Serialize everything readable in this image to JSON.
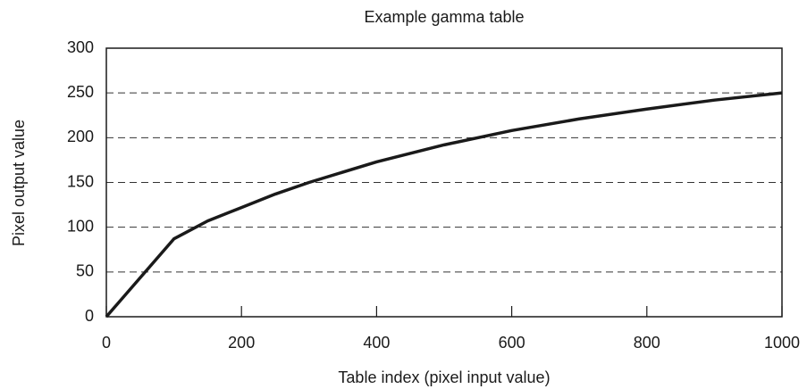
{
  "chart_data": {
    "type": "line",
    "title": "Example gamma table",
    "x_label": "Table index (pixel input value)",
    "y_label": "Pixel output value",
    "x": [
      0,
      100,
      150,
      200,
      250,
      300,
      400,
      500,
      600,
      700,
      800,
      900,
      1000
    ],
    "values": [
      0,
      87,
      107,
      122,
      137,
      150,
      173,
      192,
      208,
      221,
      232,
      242,
      250
    ],
    "color": "#1a1a1a",
    "xlim": [
      0,
      1000
    ],
    "xticks": [
      0,
      200,
      400,
      600,
      800,
      1000
    ],
    "ylim": [
      0,
      300
    ],
    "yticks": [
      0,
      50,
      100,
      150,
      200,
      250,
      300
    ],
    "grid": true
  }
}
